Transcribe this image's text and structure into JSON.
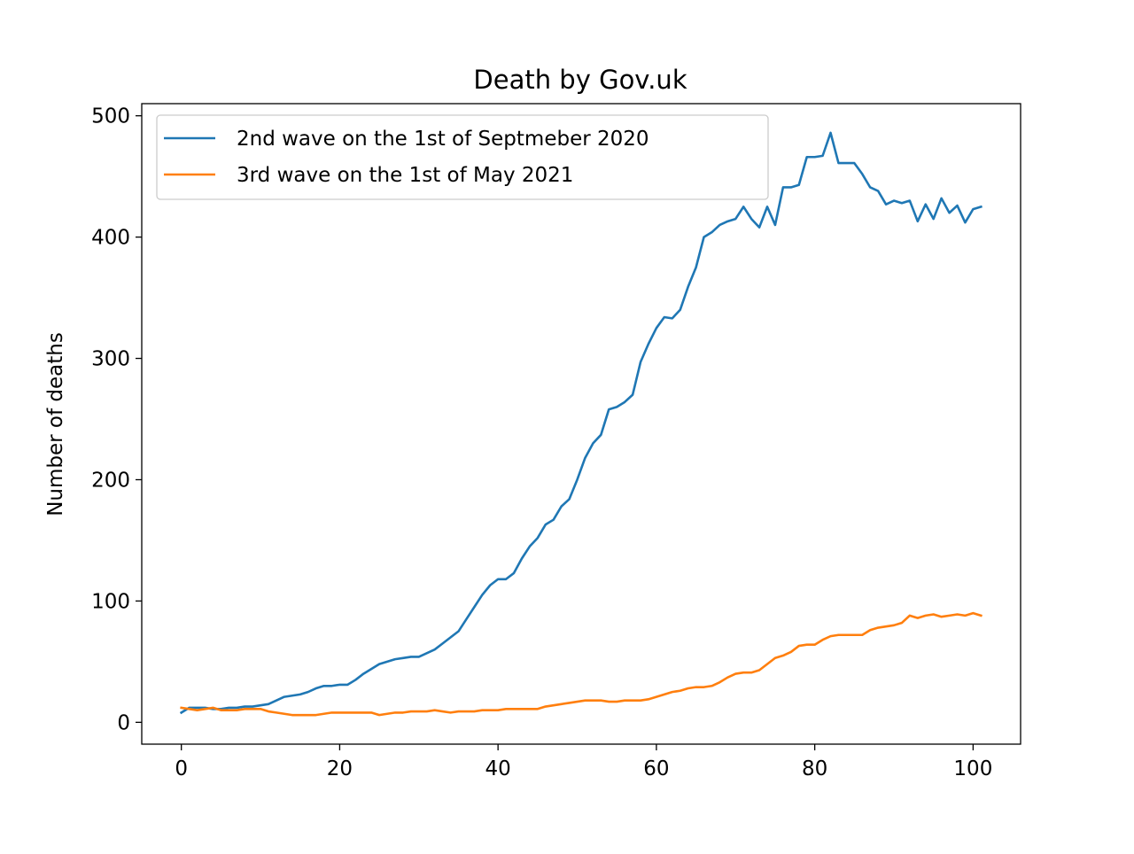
{
  "chart_data": {
    "type": "line",
    "title": "Death by Gov.uk",
    "xlabel": "",
    "ylabel": "Number of deaths",
    "xlim": [
      -5,
      106
    ],
    "ylim": [
      -18,
      510
    ],
    "xticks": [
      0,
      20,
      40,
      60,
      80,
      100
    ],
    "yticks": [
      0,
      100,
      200,
      300,
      400,
      500
    ],
    "xtick_labels": [
      "0",
      "20",
      "40",
      "60",
      "80",
      "100"
    ],
    "ytick_labels": [
      "0",
      "100",
      "200",
      "300",
      "400",
      "500"
    ],
    "grid": false,
    "legend_position": "upper-left",
    "x": [
      0,
      1,
      2,
      3,
      4,
      5,
      6,
      7,
      8,
      9,
      10,
      11,
      12,
      13,
      14,
      15,
      16,
      17,
      18,
      19,
      20,
      21,
      22,
      23,
      24,
      25,
      26,
      27,
      28,
      29,
      30,
      31,
      32,
      33,
      34,
      35,
      36,
      37,
      38,
      39,
      40,
      41,
      42,
      43,
      44,
      45,
      46,
      47,
      48,
      49,
      50,
      51,
      52,
      53,
      54,
      55,
      56,
      57,
      58,
      59,
      60,
      61,
      62,
      63,
      64,
      65,
      66,
      67,
      68,
      69,
      70,
      71,
      72,
      73,
      74,
      75,
      76,
      77,
      78,
      79,
      80,
      81,
      82,
      83,
      84,
      85,
      86,
      87,
      88,
      89,
      90,
      91,
      92,
      93,
      94,
      95,
      96,
      97,
      98,
      99,
      100,
      101
    ],
    "series": [
      {
        "name": "2nd wave on the 1st of Septmeber 2020",
        "color": "#1f77b4",
        "values": [
          8,
          12,
          12,
          12,
          11,
          11,
          12,
          12,
          13,
          13,
          14,
          15,
          18,
          21,
          22,
          23,
          25,
          28,
          30,
          30,
          31,
          31,
          35,
          40,
          44,
          48,
          50,
          52,
          53,
          54,
          54,
          57,
          60,
          65,
          70,
          75,
          85,
          95,
          105,
          113,
          118,
          118,
          123,
          135,
          145,
          152,
          163,
          167,
          178,
          184,
          200,
          218,
          230,
          237,
          258,
          260,
          264,
          270,
          297,
          312,
          325,
          334,
          333,
          340,
          359,
          375,
          400,
          404,
          410,
          413,
          415,
          425,
          415,
          408,
          425,
          410,
          441,
          441,
          443,
          466,
          466,
          467,
          486,
          461,
          461,
          461,
          452,
          441,
          438,
          427,
          430,
          428,
          430,
          413,
          427,
          415,
          432,
          420,
          426,
          412,
          423,
          425
        ]
      },
      {
        "name": "3rd wave on the 1st of May 2021",
        "color": "#ff7f0e",
        "values": [
          12,
          11,
          10,
          11,
          12,
          10,
          10,
          10,
          11,
          11,
          11,
          9,
          8,
          7,
          6,
          6,
          6,
          6,
          7,
          8,
          8,
          8,
          8,
          8,
          8,
          6,
          7,
          8,
          8,
          9,
          9,
          9,
          10,
          9,
          8,
          9,
          9,
          9,
          10,
          10,
          10,
          11,
          11,
          11,
          11,
          11,
          13,
          14,
          15,
          16,
          17,
          18,
          18,
          18,
          17,
          17,
          18,
          18,
          18,
          19,
          21,
          23,
          25,
          26,
          28,
          29,
          29,
          30,
          33,
          37,
          40,
          41,
          41,
          43,
          48,
          53,
          55,
          58,
          63,
          64,
          64,
          68,
          71,
          72,
          72,
          72,
          72,
          76,
          78,
          79,
          80,
          82,
          88,
          86,
          88,
          89,
          87,
          88,
          89,
          88,
          90,
          88
        ]
      }
    ]
  }
}
